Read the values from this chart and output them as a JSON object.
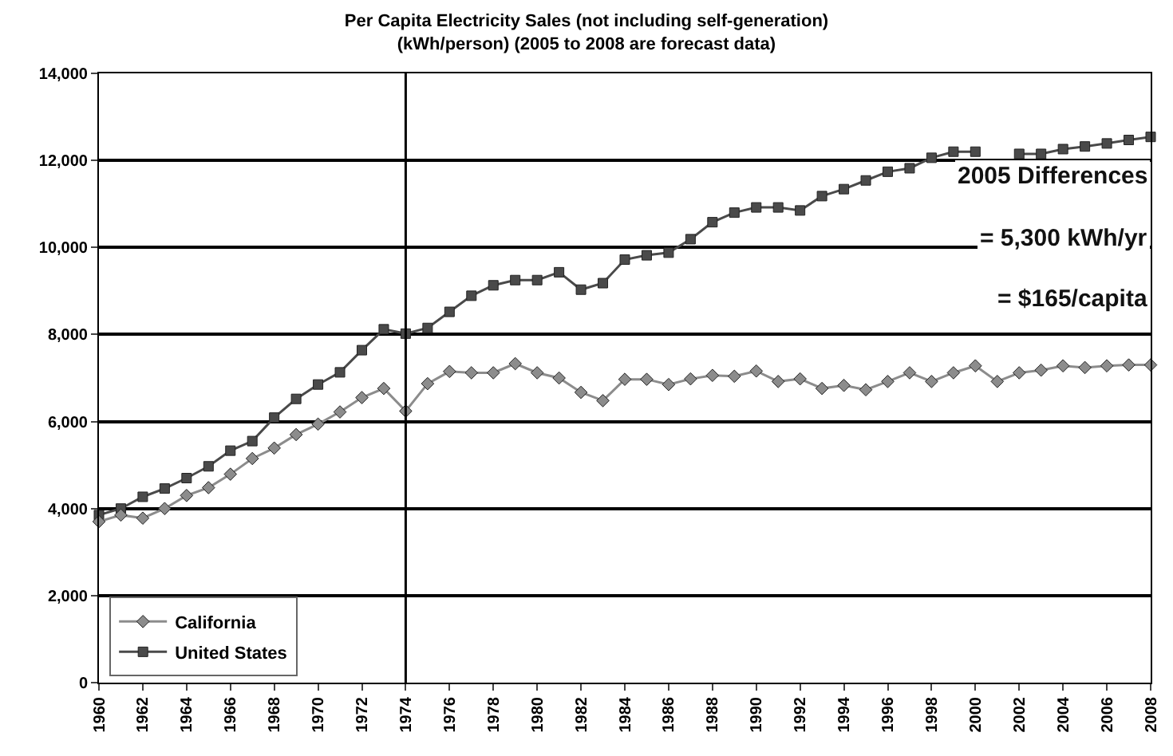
{
  "chart_data": {
    "type": "line",
    "title": "Per Capita Electricity Sales (not including self-generation)",
    "subtitle": "(kWh/person) (2005 to 2008 are forecast data)",
    "x": [
      1960,
      1961,
      1962,
      1963,
      1964,
      1965,
      1966,
      1967,
      1968,
      1969,
      1970,
      1971,
      1972,
      1973,
      1974,
      1975,
      1976,
      1977,
      1978,
      1979,
      1980,
      1981,
      1982,
      1983,
      1984,
      1985,
      1986,
      1987,
      1988,
      1989,
      1990,
      1991,
      1992,
      1993,
      1994,
      1995,
      1996,
      1997,
      1998,
      1999,
      2000,
      2001,
      2002,
      2003,
      2004,
      2005,
      2006,
      2007,
      2008
    ],
    "series": [
      {
        "name": "California",
        "color": "#8c8c8c",
        "marker": "diamond",
        "values": [
          3700,
          3850,
          3780,
          4000,
          4300,
          4480,
          4790,
          5150,
          5390,
          5700,
          5940,
          6220,
          6550,
          6760,
          6240,
          6870,
          7150,
          7120,
          7120,
          7330,
          7120,
          7000,
          6670,
          6480,
          6970,
          6970,
          6850,
          6980,
          7060,
          7040,
          7160,
          6920,
          6980,
          6760,
          6830,
          6730,
          6920,
          7120,
          6920,
          7120,
          7280,
          6920,
          7120,
          7180,
          7280,
          7240,
          7280,
          7300,
          7300
        ]
      },
      {
        "name": "United States",
        "color": "#4a4a4a",
        "marker": "square",
        "values": [
          3850,
          4000,
          4270,
          4460,
          4700,
          4970,
          5330,
          5550,
          6090,
          6520,
          6850,
          7130,
          7640,
          8120,
          8020,
          8150,
          8520,
          8890,
          9130,
          9250,
          9250,
          9430,
          9030,
          9180,
          9720,
          9820,
          9880,
          10190,
          10580,
          10800,
          10920,
          10920,
          10850,
          11180,
          11340,
          11540,
          11740,
          11820,
          12060,
          12200,
          12200,
          null,
          12150,
          12150,
          12260,
          12320,
          12390,
          12470,
          12540
        ]
      }
    ],
    "xlim": [
      1960,
      2008
    ],
    "xticks": [
      1960,
      1962,
      1964,
      1966,
      1968,
      1970,
      1972,
      1974,
      1976,
      1978,
      1980,
      1982,
      1984,
      1986,
      1988,
      1990,
      1992,
      1994,
      1996,
      1998,
      2000,
      2002,
      2004,
      2006,
      2008
    ],
    "ylim": [
      0,
      14000
    ],
    "yticks": [
      {
        "value": 0,
        "label": "0"
      },
      {
        "value": 2000,
        "label": "2,000"
      },
      {
        "value": 4000,
        "label": "4,000"
      },
      {
        "value": 6000,
        "label": "6,000"
      },
      {
        "value": 8000,
        "label": "8,000"
      },
      {
        "value": 10000,
        "label": "10,000"
      },
      {
        "value": 12000,
        "label": "12,000"
      },
      {
        "value": 14000,
        "label": "14,000"
      }
    ],
    "grid": "y",
    "legend": "bottom left",
    "line_style": "solid",
    "ref_lines": [
      {
        "axis": "x",
        "value": 1974,
        "color": "#000000"
      }
    ],
    "annotations": [
      "2005 Differences",
      "= 5,300 kWh/yr",
      "= $165/capita"
    ]
  }
}
